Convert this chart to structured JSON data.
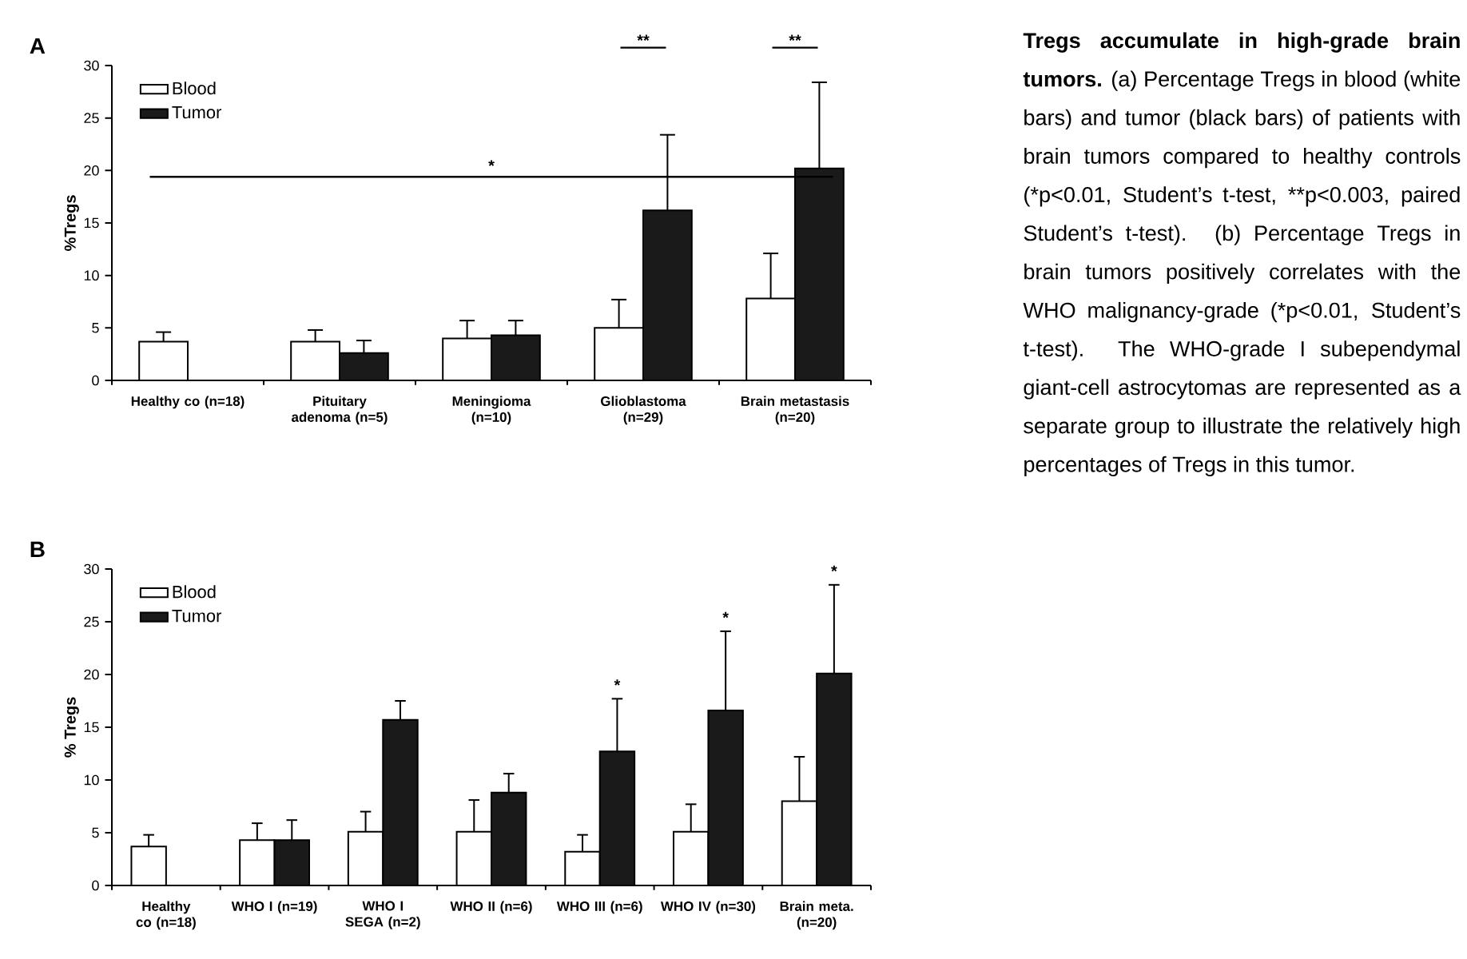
{
  "chart_data": [
    {
      "type": "bar",
      "title": "A",
      "ylabel": "%Tregs",
      "categories": [
        "Healthy co (n=18)",
        "Pituitary adenoma (n=5)",
        "Meningioma (n=10)",
        "Glioblastoma (n=29)",
        "Brain metastasis (n=20)"
      ],
      "series": [
        {
          "name": "Blood",
          "color": "#ffffff",
          "values": [
            3.7,
            3.7,
            4.0,
            5.0,
            7.8
          ],
          "errors": [
            [
              3.7,
              4.6
            ],
            [
              3.7,
              4.8
            ],
            [
              4.0,
              5.7
            ],
            [
              5.0,
              7.7
            ],
            [
              7.8,
              12.1
            ]
          ]
        },
        {
          "name": "Tumor",
          "color": "#1a1a1a",
          "values": [
            null,
            2.6,
            4.3,
            16.2,
            20.2
          ],
          "errors": [
            null,
            [
              2.6,
              3.8
            ],
            [
              4.3,
              5.7
            ],
            [
              16.2,
              23.4
            ],
            [
              20.2,
              28.4
            ]
          ]
        }
      ],
      "ylim": [
        0,
        30
      ],
      "yticks": [
        0,
        5,
        10,
        15,
        20,
        25,
        30
      ],
      "legend": "top left",
      "ref_lines": [
        {
          "axis": "y",
          "value": 19.4,
          "label": "*"
        }
      ],
      "annotations": [
        "**",
        "**"
      ]
    },
    {
      "type": "bar",
      "title": "B",
      "ylabel": "% Tregs",
      "categories": [
        "Healthy co (n=18)",
        "WHO I (n=19)",
        "WHO I SEGA (n=2)",
        "WHO II (n=6)",
        "WHO III (n=6)",
        "WHO IV (n=30)",
        "Brain meta. (n=20)"
      ],
      "series": [
        {
          "name": "Blood",
          "color": "#ffffff",
          "values": [
            3.7,
            4.3,
            5.1,
            5.1,
            3.2,
            5.1,
            8.0
          ],
          "errors": [
            [
              3.7,
              4.8
            ],
            [
              4.3,
              5.9
            ],
            [
              5.1,
              7.0
            ],
            [
              5.1,
              8.1
            ],
            [
              3.2,
              4.8
            ],
            [
              5.1,
              7.7
            ],
            [
              8.0,
              12.2
            ]
          ]
        },
        {
          "name": "Tumor",
          "color": "#1a1a1a",
          "values": [
            null,
            4.3,
            15.7,
            8.8,
            12.7,
            16.6,
            20.1
          ],
          "errors": [
            null,
            [
              4.3,
              6.2
            ],
            [
              15.7,
              17.5
            ],
            [
              8.8,
              10.6
            ],
            [
              12.7,
              17.7
            ],
            [
              16.6,
              24.1
            ],
            [
              20.1,
              28.5
            ]
          ]
        }
      ],
      "ylim": [
        0,
        30
      ],
      "yticks": [
        0,
        5,
        10,
        15,
        20,
        25,
        30
      ],
      "legend": "top left",
      "annotations": [
        "*",
        "*",
        "*"
      ]
    },
    {
      "type": "other",
      "annotations": [
        "**Tregs accumulate in high-grade brain tumors.** (a) Percentage Tregs in blood (white bars) and tumor (black bars) of patients with brain tumors compared to healthy controls (*p<0.01, Student’s t-test, **p<0.003, paired Student’s t-test). (b) Percentage Tregs in brain tumors positively correlates with the WHO malignancy-grade (*p<0.01, Student’s t-test). The WHO-grade I subependymal giant-cell astrocytomas are represented as a separate group to illustrate the relatively high percentages of Tregs in this tumor."
      ]
    }
  ]
}
